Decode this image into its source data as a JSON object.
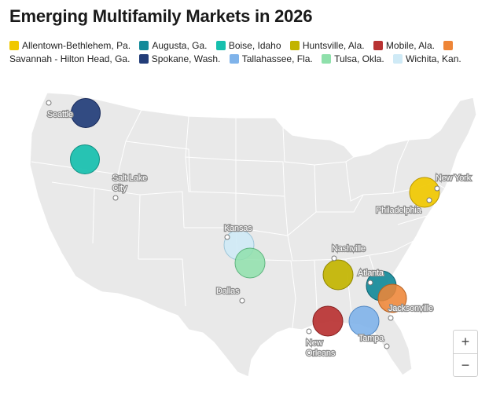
{
  "title": "Emerging Multifamily Markets in 2026",
  "legend": [
    {
      "label": "Allentown-Bethlehem, Pa.",
      "color": "#f0c800"
    },
    {
      "label": "Augusta, Ga.",
      "color": "#138a99"
    },
    {
      "label": "Boise, Idaho",
      "color": "#16bfae"
    },
    {
      "label": "Huntsville, Ala.",
      "color": "#c2b400"
    },
    {
      "label": "Mobile, Ala.",
      "color": "#b83232"
    },
    {
      "label": "Savannah - Hilton Head, Ga.",
      "color": "#ee8537"
    },
    {
      "label": "Spokane, Wash.",
      "color": "#223d78"
    },
    {
      "label": "Tallahassee, Fla.",
      "color": "#7fb3ea"
    },
    {
      "label": "Tulsa, Okla.",
      "color": "#8fe0ab"
    },
    {
      "label": "Wichita, Kan.",
      "color": "#cfeaf6"
    }
  ],
  "cities": [
    {
      "name": "Seattle"
    },
    {
      "name": "Salt Lake City"
    },
    {
      "name": "Kansas"
    },
    {
      "name": "Dallas"
    },
    {
      "name": "Nashville"
    },
    {
      "name": "Atlanta"
    },
    {
      "name": "Jacksonville"
    },
    {
      "name": "Tampa"
    },
    {
      "name": "New Orleans"
    },
    {
      "name": "New York"
    },
    {
      "name": "Philadelphia"
    }
  ],
  "zoom": {
    "in_label": "+",
    "out_label": "−"
  }
}
